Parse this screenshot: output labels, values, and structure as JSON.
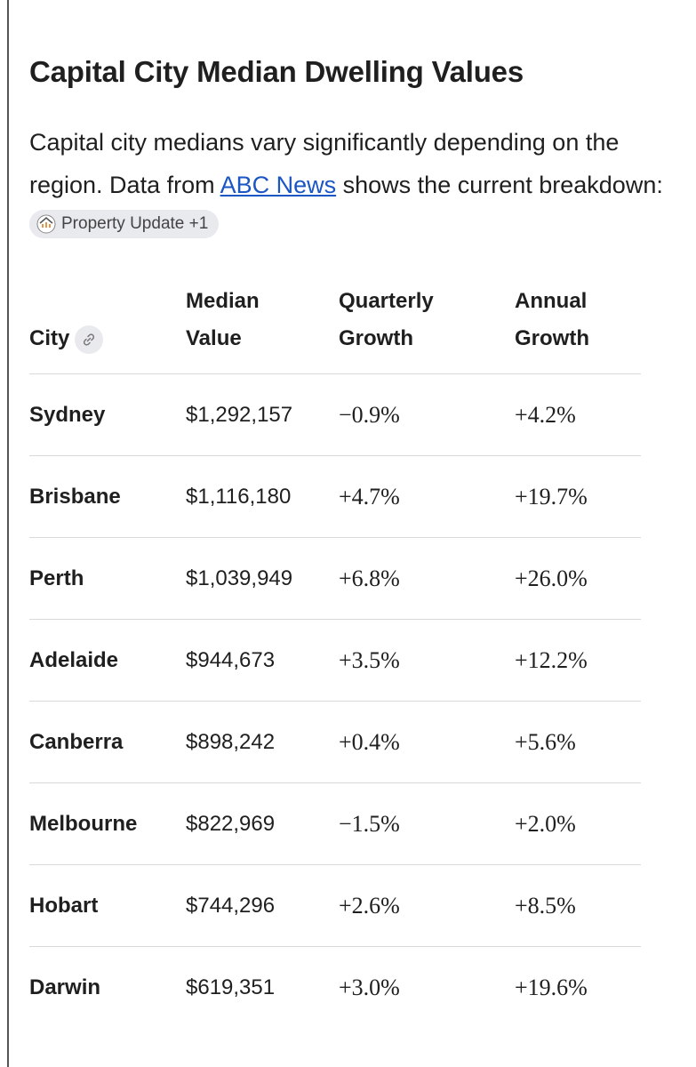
{
  "header": {
    "title": "Capital City Median Dwelling Values"
  },
  "intro": {
    "before_link": "Capital city medians vary significantly depending on the region. Data from ",
    "link": "ABC News",
    "after_link": " shows the current breakdown: ",
    "source_chip": "Property Update +1"
  },
  "table": {
    "columns": [
      "City",
      "Median Value",
      "Quarterly Growth",
      "Annual Growth"
    ],
    "rows": [
      [
        "Sydney",
        "$1,292,157",
        "−0.9%",
        "+4.2%"
      ],
      [
        "Brisbane",
        "$1,116,180",
        "+4.7%",
        "+19.7%"
      ],
      [
        "Perth",
        "$1,039,949",
        "+6.8%",
        "+26.0%"
      ],
      [
        "Adelaide",
        "$944,673",
        "+3.5%",
        "+12.2%"
      ],
      [
        "Canberra",
        "$898,242",
        "+0.4%",
        "+5.6%"
      ],
      [
        "Melbourne",
        "$822,969",
        "−1.5%",
        "+2.0%"
      ],
      [
        "Hobart",
        "$744,296",
        "+2.6%",
        "+8.5%"
      ],
      [
        "Darwin",
        "$619,351",
        "+3.0%",
        "+19.6%"
      ]
    ]
  }
}
